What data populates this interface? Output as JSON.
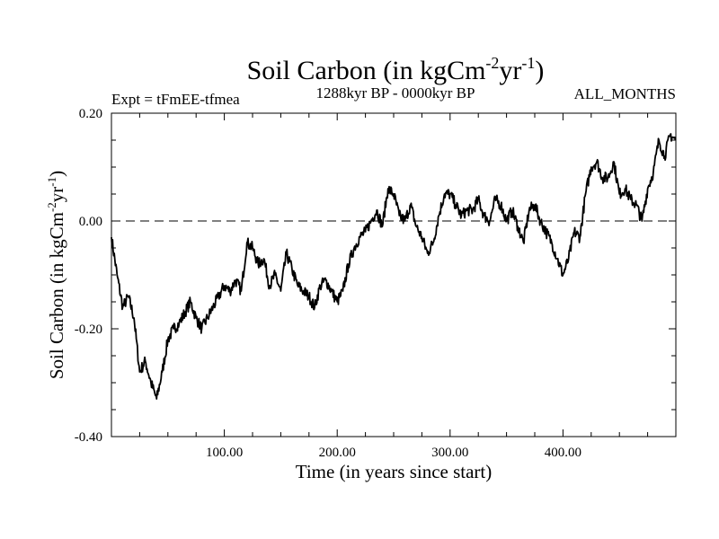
{
  "chart_data": {
    "type": "line",
    "title": {
      "main": "Soil Carbon (in kgCm",
      "sup1": "-2",
      "mid": "yr",
      "sup2": "-1",
      "end": ")"
    },
    "meta": {
      "left": "Expt = tFmEE-tfmea",
      "center": "1288kyr BP - 0000kyr BP",
      "right": "ALL_MONTHS"
    },
    "xlabel": "Time (in years since start)",
    "ylabel": {
      "main": "Soil Carbon (in kgCm",
      "sup1": "-2",
      "mid": "yr",
      "sup2": "-1",
      "end": ")"
    },
    "xlim": [
      0,
      500
    ],
    "ylim": [
      -0.4,
      0.2
    ],
    "x_ticks": [
      {
        "value": 100,
        "label": "100.00"
      },
      {
        "value": 200,
        "label": "200.00"
      },
      {
        "value": 300,
        "label": "300.00"
      },
      {
        "value": 400,
        "label": "400.00"
      }
    ],
    "y_ticks": [
      {
        "value": 0.2,
        "label": "0.20"
      },
      {
        "value": 0.0,
        "label": "0.00"
      },
      {
        "value": -0.2,
        "label": "-0.20"
      },
      {
        "value": -0.4,
        "label": "-0.40"
      }
    ],
    "reference_line": {
      "y": 0.0,
      "style": "dashed"
    },
    "series": [
      {
        "name": "Soil Carbon",
        "color": "#000000",
        "x": [
          0,
          5,
          10,
          15,
          20,
          25,
          30,
          35,
          40,
          45,
          50,
          55,
          60,
          65,
          70,
          75,
          80,
          85,
          90,
          95,
          100,
          105,
          110,
          115,
          120,
          125,
          130,
          135,
          140,
          145,
          150,
          155,
          160,
          165,
          170,
          175,
          180,
          185,
          190,
          195,
          200,
          205,
          210,
          215,
          220,
          225,
          230,
          235,
          240,
          245,
          250,
          255,
          260,
          265,
          270,
          275,
          280,
          285,
          290,
          295,
          300,
          305,
          310,
          315,
          320,
          325,
          330,
          335,
          340,
          345,
          350,
          355,
          360,
          365,
          370,
          375,
          380,
          385,
          390,
          395,
          400,
          405,
          410,
          415,
          420,
          425,
          430,
          435,
          440,
          445,
          450,
          455,
          460,
          465,
          470,
          475,
          480,
          485,
          490,
          495,
          500
        ],
        "y": [
          -0.03,
          -0.1,
          -0.16,
          -0.14,
          -0.18,
          -0.28,
          -0.26,
          -0.3,
          -0.33,
          -0.28,
          -0.22,
          -0.2,
          -0.19,
          -0.17,
          -0.15,
          -0.18,
          -0.2,
          -0.18,
          -0.16,
          -0.14,
          -0.12,
          -0.13,
          -0.11,
          -0.13,
          -0.04,
          -0.05,
          -0.08,
          -0.07,
          -0.12,
          -0.1,
          -0.13,
          -0.06,
          -0.09,
          -0.12,
          -0.13,
          -0.14,
          -0.16,
          -0.12,
          -0.11,
          -0.13,
          -0.15,
          -0.13,
          -0.08,
          -0.05,
          -0.03,
          -0.02,
          -0.0,
          0.02,
          -0.01,
          0.06,
          0.05,
          0.01,
          0.0,
          0.03,
          -0.01,
          -0.03,
          -0.06,
          -0.04,
          0.01,
          0.05,
          0.05,
          0.03,
          0.01,
          0.02,
          0.02,
          0.04,
          0.01,
          0.0,
          0.04,
          0.03,
          0.0,
          0.02,
          -0.01,
          -0.04,
          0.02,
          0.03,
          0.0,
          -0.02,
          -0.04,
          -0.07,
          -0.1,
          -0.07,
          -0.02,
          -0.03,
          0.05,
          0.1,
          0.11,
          0.08,
          0.08,
          0.11,
          0.05,
          0.06,
          0.04,
          0.03,
          0.0,
          0.06,
          0.09,
          0.15,
          0.12,
          0.16,
          0.15
        ]
      }
    ]
  }
}
